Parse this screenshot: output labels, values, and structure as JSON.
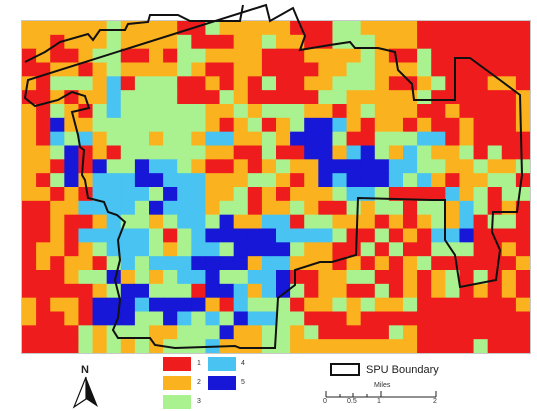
{
  "legend": {
    "classes": [
      {
        "label": "1",
        "color": "#ee1c1c"
      },
      {
        "label": "2",
        "color": "#fbb21f"
      },
      {
        "label": "3",
        "color": "#aaf28f"
      },
      {
        "label": "4",
        "color": "#48c3f2"
      },
      {
        "label": "5",
        "color": "#1717d8"
      }
    ],
    "boundary_label": "SPU Boundary"
  },
  "north_arrow": {
    "label": "N"
  },
  "scale_bar": {
    "title": "Miles",
    "ticks": [
      "0",
      "0.5",
      "1",
      "2"
    ]
  },
  "grid": {
    "rows": 24,
    "cols": 36,
    "classes": [
      "222222322221132222211133222211111111",
      "221222322223111223221133322211111111",
      "121123311213322221112222321131111111",
      "112212322223211221111223322231111111",
      "213332413331121213112233321123111221",
      "112122433331113211111332222231111112",
      "213213433333322323332212322211211112",
      "215223333333321231235542122121121112",
      "214342333233244223255531133344121111",
      "223512133333322113115524532432231311",
      "221515335443211212322555554433223223",
      "213524445544422233212545554342122331",
      "221214444354422312122234431111423133",
      "112244443544423312232113233133243121",
      "112112433234435224413322212123241331",
      "112144444313455555444431131214451111",
      "122123444323443555532211313113331121",
      "121221343444555524422212121231111112",
      "111233523234453344511223311212313121",
      "111112355333155424531221131212312121",
      "212215554555521433312232322311111112",
      "211215553354343544331112111111111111",
      "111132333223335223323111113211111111",
      "111132323233342223322222222211113111"
    ]
  }
}
